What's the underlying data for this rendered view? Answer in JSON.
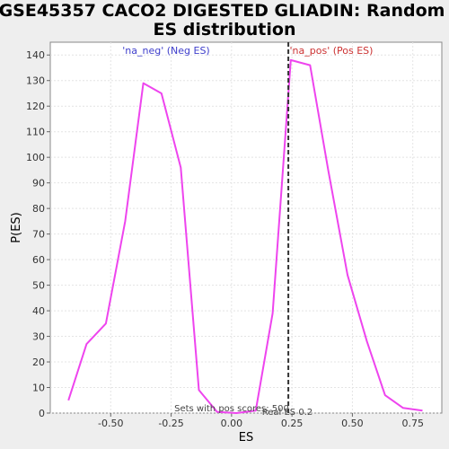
{
  "chart_data": {
    "type": "line",
    "title_line1": "GSE45357 CACO2 DIGESTED GLIADIN: Random",
    "title_line2": "ES distribution",
    "xlabel": "ES",
    "ylabel": "P(ES)",
    "xlim": [
      -0.75,
      0.87
    ],
    "ylim": [
      0,
      145
    ],
    "xticks": [
      -0.5,
      -0.25,
      0.0,
      0.25,
      0.5,
      0.75
    ],
    "xtick_labels": [
      "-0.50",
      "-0.25",
      "0.00",
      "0.25",
      "0.50",
      "0.75"
    ],
    "yticks": [
      0,
      10,
      20,
      30,
      40,
      50,
      60,
      70,
      80,
      90,
      100,
      110,
      120,
      130,
      140
    ],
    "grid": true,
    "neg_label": "'na_neg' (Neg ES)",
    "pos_label": "'na_pos' (Pos ES)",
    "sets_annotation": "Sets with pos scores: 500",
    "real_es_label": "Real ES 0.2",
    "real_es_value": 0.235,
    "line_color": "#ee44ee",
    "marker_color": "#333333",
    "series": [
      {
        "points": [
          [
            -0.675,
            5
          ],
          [
            -0.6,
            27
          ],
          [
            -0.52,
            35
          ],
          [
            -0.44,
            75
          ],
          [
            -0.365,
            129
          ],
          [
            -0.29,
            125
          ],
          [
            -0.21,
            96
          ],
          [
            -0.135,
            9
          ],
          [
            -0.06,
            0.5
          ],
          [
            0.02,
            0
          ],
          [
            0.1,
            1
          ],
          [
            0.17,
            39
          ],
          [
            0.245,
            138
          ],
          [
            0.325,
            136
          ],
          [
            0.4,
            95
          ],
          [
            0.48,
            54
          ],
          [
            0.56,
            28
          ],
          [
            0.635,
            7
          ],
          [
            0.71,
            2
          ],
          [
            0.79,
            1
          ]
        ]
      }
    ]
  }
}
